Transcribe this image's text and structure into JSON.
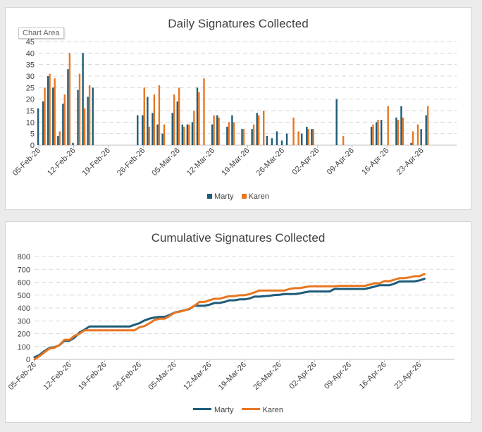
{
  "chart_data": [
    {
      "type": "bar",
      "title": "Daily Signatures Collected",
      "tooltip": "Chart Area",
      "ylim": [
        0,
        45
      ],
      "yticks": [
        0,
        5,
        10,
        15,
        20,
        25,
        30,
        35,
        40,
        45
      ],
      "xlim": [
        "05-Feb-26",
        "30-Apr-26"
      ],
      "xtick_labels": [
        "05-Feb-26",
        "12-Feb-26",
        "19-Feb-26",
        "26-Feb-26",
        "05-Mar-26",
        "12-Mar-26",
        "19-Mar-26",
        "26-Mar-26",
        "02-Apr-26",
        "09-Apr-26",
        "16-Apr-26",
        "23-Apr-26"
      ],
      "legend_position": "bottom",
      "series": [
        {
          "name": "Marty",
          "color": "#1f5c7a",
          "values": [
            16,
            19,
            30,
            25,
            4,
            18,
            33,
            1,
            24,
            40,
            21,
            25,
            0,
            0,
            0,
            0,
            0,
            0,
            0,
            0,
            13,
            13,
            21,
            14,
            9,
            5,
            0,
            14,
            19,
            9,
            9,
            10,
            25,
            0,
            0,
            9,
            13,
            0,
            8,
            13,
            0,
            7,
            0,
            7,
            14,
            0,
            4,
            3,
            6,
            2,
            5,
            0,
            0,
            5,
            8,
            7,
            0,
            0,
            0,
            0,
            20,
            0,
            0,
            0,
            0,
            0,
            0,
            8,
            10,
            11,
            0,
            0,
            12,
            17,
            0,
            1,
            0,
            7,
            13
          ]
        },
        {
          "name": "Karen",
          "color": "#e87722",
          "values": [
            0,
            25,
            31,
            29,
            6,
            22,
            40,
            0,
            31,
            16,
            26,
            0,
            0,
            0,
            0,
            0,
            0,
            0,
            0,
            0,
            0,
            25,
            8,
            22,
            26,
            9,
            0,
            22,
            25,
            8,
            9,
            15,
            23,
            29,
            0,
            13,
            12,
            0,
            10,
            10,
            0,
            7,
            0,
            9,
            13,
            15,
            0,
            0,
            0,
            0,
            0,
            12,
            6,
            0,
            7,
            7,
            0,
            0,
            0,
            0,
            0,
            4,
            0,
            0,
            0,
            0,
            0,
            9,
            11,
            0,
            17,
            0,
            11,
            12,
            0,
            6,
            9,
            0,
            17
          ]
        }
      ]
    },
    {
      "type": "line",
      "title": "Cumulative Signatures Collected",
      "ylim": [
        0,
        800
      ],
      "yticks": [
        0,
        100,
        200,
        300,
        400,
        500,
        600,
        700,
        800
      ],
      "xlim": [
        "05-Feb-26",
        "30-Apr-26"
      ],
      "xtick_labels": [
        "05-Feb-26",
        "12-Feb-26",
        "19-Feb-26",
        "26-Feb-26",
        "05-Mar-26",
        "12-Mar-26",
        "19-Mar-26",
        "26-Mar-26",
        "02-Apr-26",
        "09-Apr-26",
        "16-Apr-26",
        "23-Apr-26"
      ],
      "legend_position": "bottom",
      "series": [
        {
          "name": "Marty",
          "color": "#1f5c7a",
          "values": [
            16,
            35,
            65,
            90,
            94,
            112,
            145,
            146,
            170,
            210,
            231,
            256,
            256,
            256,
            256,
            256,
            256,
            256,
            256,
            256,
            269,
            282,
            303,
            317,
            326,
            331,
            331,
            345,
            364,
            373,
            382,
            392,
            417,
            417,
            417,
            426,
            439,
            439,
            447,
            460,
            460,
            467,
            467,
            474,
            488,
            488,
            492,
            495,
            501,
            503,
            508,
            508,
            508,
            513,
            521,
            528,
            528,
            528,
            528,
            528,
            548,
            548,
            548,
            548,
            548,
            548,
            548,
            556,
            566,
            577,
            577,
            577,
            589,
            606,
            606,
            607,
            607,
            614,
            627
          ]
        },
        {
          "name": "Karen",
          "color": "#e87722",
          "values": [
            0,
            25,
            56,
            85,
            91,
            113,
            153,
            153,
            184,
            200,
            226,
            226,
            226,
            226,
            226,
            226,
            226,
            226,
            226,
            226,
            226,
            251,
            259,
            281,
            307,
            316,
            316,
            338,
            363,
            371,
            380,
            395,
            418,
            447,
            447,
            460,
            472,
            472,
            482,
            492,
            492,
            499,
            499,
            508,
            521,
            536,
            536,
            536,
            536,
            536,
            536,
            548,
            554,
            554,
            561,
            568,
            568,
            568,
            568,
            568,
            568,
            572,
            572,
            572,
            572,
            572,
            572,
            581,
            592,
            592,
            609,
            609,
            620,
            632,
            632,
            638,
            647,
            647,
            664
          ]
        }
      ]
    }
  ]
}
